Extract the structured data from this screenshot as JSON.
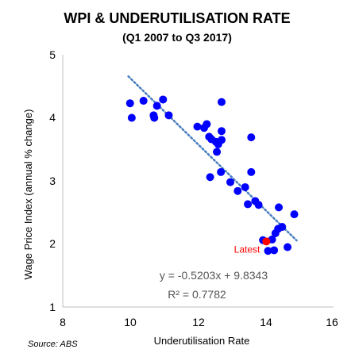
{
  "chart_data": {
    "type": "scatter",
    "title": "WPI & UNDERUTILISATION RATE",
    "subtitle": "(Q1 2007 to Q3 2017)",
    "xlabel": "Underutilisation Rate",
    "ylabel": "Wage Price Index (annual % change)",
    "xlim": [
      8,
      16
    ],
    "ylim": [
      1,
      5
    ],
    "xticks": [
      "8",
      "10",
      "12",
      "14",
      "16"
    ],
    "yticks": [
      "1",
      "2",
      "3",
      "4",
      "5"
    ],
    "grid": false,
    "point_color": "#0000ff",
    "latest_color": "#ff0000",
    "trend_color": "#4a7ebf",
    "points": [
      {
        "x": 10.0,
        "y": 4.23
      },
      {
        "x": 10.05,
        "y": 4.0
      },
      {
        "x": 10.4,
        "y": 4.27
      },
      {
        "x": 10.7,
        "y": 4.04
      },
      {
        "x": 10.72,
        "y": 4.0
      },
      {
        "x": 10.8,
        "y": 4.19
      },
      {
        "x": 10.98,
        "y": 4.29
      },
      {
        "x": 11.15,
        "y": 4.04
      },
      {
        "x": 12.0,
        "y": 3.86
      },
      {
        "x": 12.2,
        "y": 3.84
      },
      {
        "x": 12.28,
        "y": 3.9
      },
      {
        "x": 12.35,
        "y": 3.7
      },
      {
        "x": 12.42,
        "y": 3.66
      },
      {
        "x": 12.55,
        "y": 3.62
      },
      {
        "x": 12.62,
        "y": 3.58
      },
      {
        "x": 12.58,
        "y": 3.46
      },
      {
        "x": 12.72,
        "y": 3.65
      },
      {
        "x": 12.72,
        "y": 3.79
      },
      {
        "x": 12.72,
        "y": 4.25
      },
      {
        "x": 12.38,
        "y": 3.06
      },
      {
        "x": 12.7,
        "y": 3.14
      },
      {
        "x": 12.98,
        "y": 2.98
      },
      {
        "x": 13.2,
        "y": 2.84
      },
      {
        "x": 13.42,
        "y": 2.9
      },
      {
        "x": 13.5,
        "y": 2.63
      },
      {
        "x": 13.6,
        "y": 3.69
      },
      {
        "x": 13.6,
        "y": 3.14
      },
      {
        "x": 13.72,
        "y": 2.68
      },
      {
        "x": 13.82,
        "y": 2.62
      },
      {
        "x": 13.95,
        "y": 2.06
      },
      {
        "x": 14.1,
        "y": 1.89
      },
      {
        "x": 14.22,
        "y": 2.07
      },
      {
        "x": 14.28,
        "y": 1.9
      },
      {
        "x": 14.32,
        "y": 2.17
      },
      {
        "x": 14.4,
        "y": 2.24
      },
      {
        "x": 14.42,
        "y": 2.58
      },
      {
        "x": 14.52,
        "y": 2.27
      },
      {
        "x": 14.68,
        "y": 1.95
      },
      {
        "x": 14.88,
        "y": 2.47
      }
    ],
    "latest": {
      "x": 14.05,
      "y": 2.04,
      "label": "Latest"
    },
    "trendline": {
      "slope": -0.5203,
      "intercept": 9.8343,
      "x_range": [
        9.95,
        14.95
      ],
      "equation_text": "y = -0.5203x + 9.8343",
      "r2_text": "R² = 0.7782"
    }
  },
  "source": "Source: ABS"
}
